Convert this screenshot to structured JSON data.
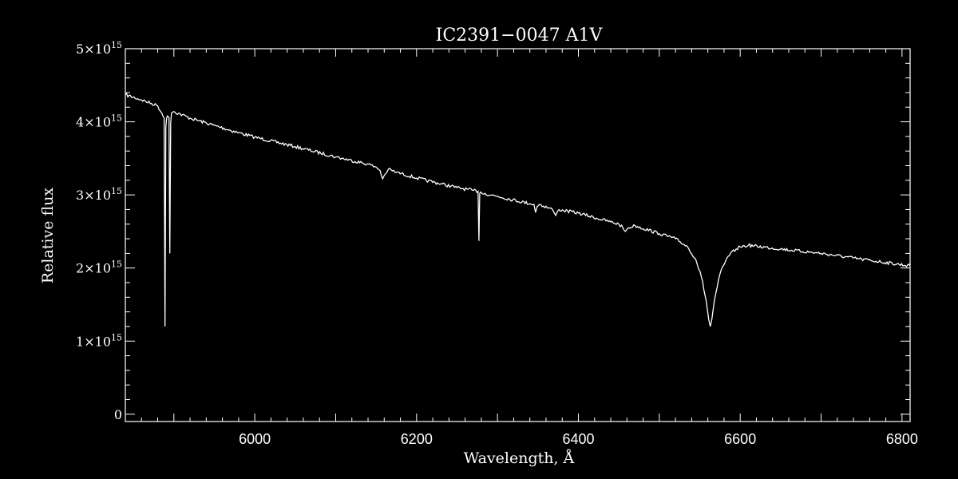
{
  "chart_data": {
    "type": "line",
    "title": "IC2391−0047  A1V",
    "xlabel": "Wavelength, Å",
    "ylabel": "Relative flux",
    "xlim": [
      5840,
      6810
    ],
    "ylim": [
      -100000000000000.0,
      5000000000000000.0
    ],
    "x_ticks": [
      {
        "value": 6000,
        "label": "6000"
      },
      {
        "value": 6200,
        "label": "6200"
      },
      {
        "value": 6400,
        "label": "6400"
      },
      {
        "value": 6600,
        "label": "6600"
      },
      {
        "value": 6800,
        "label": "6800"
      }
    ],
    "y_ticks": [
      {
        "value": 0,
        "label": "0",
        "exp": ""
      },
      {
        "value": 1000000000000000.0,
        "label": "1×10",
        "exp": "15"
      },
      {
        "value": 2000000000000000.0,
        "label": "2×10",
        "exp": "15"
      },
      {
        "value": 3000000000000000.0,
        "label": "3×10",
        "exp": "15"
      },
      {
        "value": 4000000000000000.0,
        "label": "4×10",
        "exp": "15"
      },
      {
        "value": 5000000000000000.0,
        "label": "5×10",
        "exp": "15"
      }
    ],
    "grid": false,
    "series": [
      {
        "color": "#ffffff",
        "x": [
          5840,
          5860,
          5880,
          5885,
          5888,
          5889,
          5890,
          5891,
          5892,
          5894,
          5895,
          5896,
          5897,
          5898,
          5900,
          5920,
          5950,
          5980,
          6000,
          6050,
          6100,
          6140,
          6150,
          6155,
          6158,
          6161,
          6165,
          6175,
          6200,
          6250,
          6270,
          6276,
          6277,
          6278,
          6279,
          6280,
          6300,
          6340,
          6345,
          6347,
          6349,
          6352,
          6368,
          6372,
          6376,
          6400,
          6440,
          6450,
          6455,
          6458,
          6462,
          6470,
          6500,
          6520,
          6535,
          6545,
          6552,
          6558,
          6561,
          6563,
          6565,
          6568,
          6575,
          6585,
          6595,
          6600,
          6610,
          6650,
          6700,
          6750,
          6810
        ],
        "y": [
          4370000000000000.0,
          4300000000000000.0,
          4220000000000000.0,
          4120000000000000.0,
          4050000000000000.0,
          1200000000000000.0,
          3920000000000000.0,
          4050000000000000.0,
          4080000000000000.0,
          4060000000000000.0,
          2200000000000000.0,
          3980000000000000.0,
          4120000000000000.0,
          4130000000000000.0,
          4140000000000000.0,
          4050000000000000.0,
          3950000000000000.0,
          3850000000000000.0,
          3790000000000000.0,
          3660000000000000.0,
          3520000000000000.0,
          3420000000000000.0,
          3380000000000000.0,
          3330000000000000.0,
          3220000000000000.0,
          3280000000000000.0,
          3350000000000000.0,
          3310000000000000.0,
          3230000000000000.0,
          3100000000000000.0,
          3060000000000000.0,
          3050000000000000.0,
          2370000000000000.0,
          3020000000000000.0,
          3040000000000000.0,
          3030000000000000.0,
          2980000000000000.0,
          2880000000000000.0,
          2870000000000000.0,
          2760000000000000.0,
          2840000000000000.0,
          2870000000000000.0,
          2800000000000000.0,
          2720000000000000.0,
          2800000000000000.0,
          2750000000000000.0,
          2630000000000000.0,
          2600000000000000.0,
          2550000000000000.0,
          2500000000000000.0,
          2550000000000000.0,
          2580000000000000.0,
          2470000000000000.0,
          2400000000000000.0,
          2290000000000000.0,
          2120000000000000.0,
          1880000000000000.0,
          1550000000000000.0,
          1300000000000000.0,
          1200000000000000.0,
          1300000000000000.0,
          1550000000000000.0,
          1920000000000000.0,
          2160000000000000.0,
          2260000000000000.0,
          2290000000000000.0,
          2310000000000000.0,
          2260000000000000.0,
          2200000000000000.0,
          2120000000000000.0,
          2030000000000000.0
        ]
      }
    ]
  }
}
